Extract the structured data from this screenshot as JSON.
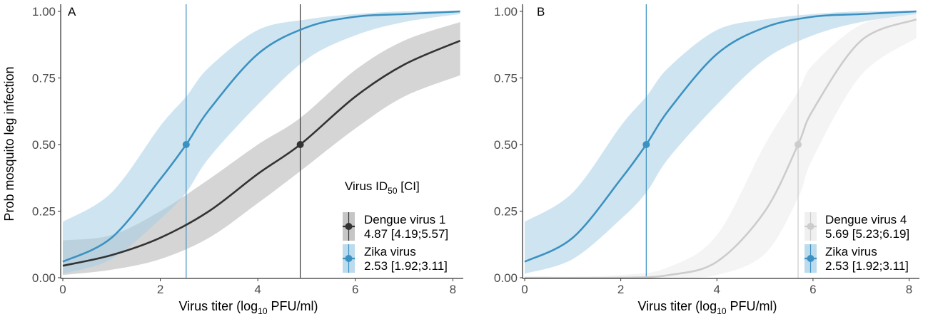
{
  "ylabel": "Prob mosquito leg infection",
  "xlabel": {
    "main": "Virus titer (log",
    "sub": "10",
    "rest": " PFU/ml)"
  },
  "chart_data": [
    {
      "type": "line",
      "panel": "A",
      "xlim": [
        0,
        8.2
      ],
      "ylim": [
        0,
        1
      ],
      "x_ticks": [
        0,
        2,
        4,
        6,
        8
      ],
      "y_ticks": [
        0,
        0.25,
        0.5,
        0.75,
        1
      ],
      "y_tick_labels": [
        "0.00",
        "0.25",
        "0.50",
        "0.75",
        "1.00"
      ],
      "grid": false,
      "legend_position": "right",
      "legend_title": {
        "main": "Virus  ID",
        "sub": "50",
        "rest": " [CI]"
      },
      "series": [
        {
          "name": "Dengue virus 1",
          "ci_label": "4.87 [4.19;5.57]",
          "color": "#333333",
          "band_color": "#b3b3b3",
          "id50": 4.87,
          "x": [
            0,
            1,
            2,
            3,
            4,
            4.87,
            6,
            7,
            8.15
          ],
          "y": [
            0.045,
            0.085,
            0.15,
            0.25,
            0.39,
            0.5,
            0.68,
            0.8,
            0.89
          ],
          "lower": [
            0.01,
            0.03,
            0.07,
            0.15,
            0.28,
            0.4,
            0.56,
            0.68,
            0.76
          ],
          "upper": [
            0.14,
            0.16,
            0.25,
            0.37,
            0.5,
            0.6,
            0.78,
            0.89,
            0.96
          ]
        },
        {
          "name": "Zika virus",
          "ci_label": "2.53 [1.92;3.11]",
          "color": "#3c91c1",
          "band_color": "#a6cfe6",
          "id50": 2.53,
          "x": [
            0,
            1,
            2,
            2.53,
            3,
            4,
            5,
            6,
            7,
            8.15
          ],
          "y": [
            0.06,
            0.15,
            0.37,
            0.5,
            0.63,
            0.84,
            0.94,
            0.98,
            0.99,
            1.0
          ],
          "lower": [
            0.015,
            0.07,
            0.22,
            0.32,
            0.45,
            0.65,
            0.82,
            0.91,
            0.96,
            0.99
          ],
          "upper": [
            0.21,
            0.32,
            0.57,
            0.68,
            0.79,
            0.93,
            0.97,
            0.99,
            1.0,
            1.0
          ]
        }
      ]
    },
    {
      "type": "line",
      "panel": "B",
      "xlim": [
        0,
        8.2
      ],
      "ylim": [
        0,
        1
      ],
      "x_ticks": [
        0,
        2,
        4,
        6,
        8
      ],
      "y_ticks": [
        0,
        0.25,
        0.5,
        0.75,
        1
      ],
      "y_tick_labels": [
        "0.00",
        "0.25",
        "0.50",
        "0.75",
        "1.00"
      ],
      "grid": false,
      "legend_position": "right",
      "series": [
        {
          "name": "Dengue virus 4",
          "ci_label": "5.69 [5.23;6.19]",
          "color": "#cccccc",
          "band_color": "#ebebeb",
          "id50": 5.69,
          "x": [
            0,
            2,
            3,
            4,
            5,
            5.69,
            6,
            7,
            8.15
          ],
          "y": [
            0.0,
            0.0,
            0.01,
            0.06,
            0.25,
            0.5,
            0.63,
            0.89,
            0.97
          ],
          "lower": [
            0.0,
            0.0,
            0.0,
            0.01,
            0.09,
            0.3,
            0.45,
            0.76,
            0.9
          ],
          "upper": [
            0.0,
            0.01,
            0.04,
            0.16,
            0.5,
            0.7,
            0.8,
            0.95,
            0.99
          ]
        },
        {
          "name": "Zika virus",
          "ci_label": "2.53 [1.92;3.11]",
          "color": "#3c91c1",
          "band_color": "#a6cfe6",
          "id50": 2.53,
          "x": [
            0,
            1,
            2,
            2.53,
            3,
            4,
            5,
            6,
            7,
            8.15
          ],
          "y": [
            0.06,
            0.15,
            0.37,
            0.5,
            0.63,
            0.84,
            0.94,
            0.98,
            0.99,
            1.0
          ],
          "lower": [
            0.015,
            0.07,
            0.22,
            0.32,
            0.45,
            0.65,
            0.82,
            0.91,
            0.96,
            0.99
          ],
          "upper": [
            0.21,
            0.32,
            0.57,
            0.68,
            0.79,
            0.93,
            0.97,
            0.99,
            1.0,
            1.0
          ]
        }
      ]
    }
  ]
}
